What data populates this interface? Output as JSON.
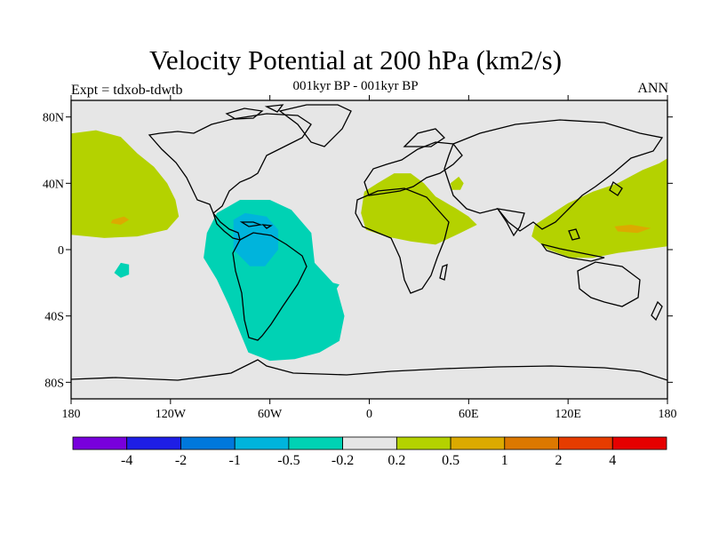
{
  "title": "Velocity Potential at 200 hPa (km2/s)",
  "subtitle": "001kyr BP - 001kyr BP",
  "left_string": "Expt = tdxob-tdwtb",
  "right_string": "ANN",
  "map": {
    "projection": "cylindrical-equidistant",
    "lon_range": [
      -180,
      180
    ],
    "lat_range": [
      -90,
      90
    ],
    "background_color": "#e6e6e6",
    "coastline_color": "#000000",
    "lat_ticks": [
      {
        "value": 80,
        "label": "80N"
      },
      {
        "value": 40,
        "label": "40N"
      },
      {
        "value": 0,
        "label": "0"
      },
      {
        "value": -40,
        "label": "40S"
      },
      {
        "value": -80,
        "label": "80S"
      }
    ],
    "lon_ticks": [
      {
        "value": -180,
        "label": "180"
      },
      {
        "value": -120,
        "label": "120W"
      },
      {
        "value": -60,
        "label": "60W"
      },
      {
        "value": 0,
        "label": "0"
      },
      {
        "value": 60,
        "label": "60E"
      },
      {
        "value": 120,
        "label": "120E"
      },
      {
        "value": 180,
        "label": "180"
      }
    ],
    "regions": [
      {
        "name": "North Pacific positive",
        "color": "#b4d200",
        "lonlat": [
          [
            -180,
            70
          ],
          [
            -165,
            72
          ],
          [
            -150,
            68
          ],
          [
            -140,
            58
          ],
          [
            -130,
            50
          ],
          [
            -122,
            40
          ],
          [
            -117,
            30
          ],
          [
            -115,
            20
          ],
          [
            -122,
            12
          ],
          [
            -140,
            8
          ],
          [
            -160,
            7
          ],
          [
            -180,
            9
          ]
        ]
      },
      {
        "name": "North Pacific max",
        "color": "#dcaa00",
        "lonlat": [
          [
            -155,
            18
          ],
          [
            -148,
            20
          ],
          [
            -145,
            18
          ],
          [
            -150,
            15
          ],
          [
            -156,
            16
          ]
        ]
      },
      {
        "name": "South America negative",
        "color": "#00d2b4",
        "lonlat": [
          [
            -100,
            -5
          ],
          [
            -92,
            -18
          ],
          [
            -85,
            -33
          ],
          [
            -78,
            -50
          ],
          [
            -73,
            -62
          ],
          [
            -60,
            -67
          ],
          [
            -45,
            -66
          ],
          [
            -30,
            -62
          ],
          [
            -18,
            -55
          ],
          [
            -15,
            -40
          ],
          [
            -20,
            -22
          ],
          [
            -33,
            -8
          ],
          [
            -35,
            10
          ],
          [
            -47,
            24
          ],
          [
            -60,
            30
          ],
          [
            -78,
            30
          ],
          [
            -92,
            22
          ],
          [
            -98,
            10
          ]
        ]
      },
      {
        "name": "Caribbean negative core",
        "color": "#00b4dc",
        "lonlat": [
          [
            -82,
            18
          ],
          [
            -75,
            22
          ],
          [
            -62,
            20
          ],
          [
            -55,
            12
          ],
          [
            -55,
            0
          ],
          [
            -63,
            -10
          ],
          [
            -72,
            -10
          ],
          [
            -82,
            0
          ]
        ]
      },
      {
        "name": "South Pacific negative",
        "color": "#00d2b4",
        "lonlat": [
          [
            -150,
            -8
          ],
          [
            -145,
            -9
          ],
          [
            -145,
            -15
          ],
          [
            -150,
            -17
          ],
          [
            -154,
            -14
          ]
        ]
      },
      {
        "name": "South Atlantic negative",
        "color": "#00d2b4",
        "lonlat": [
          [
            -22,
            -20
          ],
          [
            -18,
            -21
          ],
          [
            -20,
            -24
          ],
          [
            -24,
            -22
          ]
        ]
      },
      {
        "name": "Africa positive",
        "color": "#b4d200",
        "lonlat": [
          [
            -3,
            35
          ],
          [
            5,
            40
          ],
          [
            15,
            46
          ],
          [
            25,
            46
          ],
          [
            33,
            40
          ],
          [
            40,
            32
          ],
          [
            52,
            25
          ],
          [
            60,
            20
          ],
          [
            65,
            15
          ],
          [
            55,
            10
          ],
          [
            40,
            3
          ],
          [
            25,
            5
          ],
          [
            10,
            8
          ],
          [
            -2,
            12
          ],
          [
            -5,
            22
          ]
        ]
      },
      {
        "name": "Caspian positive",
        "color": "#b4d200",
        "lonlat": [
          [
            49,
            40
          ],
          [
            54,
            44
          ],
          [
            57,
            40
          ],
          [
            55,
            36
          ],
          [
            50,
            36
          ]
        ]
      },
      {
        "name": "West Pacific positive",
        "color": "#b4d200",
        "lonlat": [
          [
            100,
            15
          ],
          [
            120,
            28
          ],
          [
            135,
            35
          ],
          [
            150,
            40
          ],
          [
            165,
            48
          ],
          [
            175,
            52
          ],
          [
            180,
            55
          ],
          [
            180,
            2
          ],
          [
            165,
            0
          ],
          [
            150,
            -2
          ],
          [
            135,
            -5
          ],
          [
            122,
            -5
          ],
          [
            108,
            0
          ],
          [
            98,
            8
          ]
        ]
      },
      {
        "name": "West Pacific max",
        "color": "#dcaa00",
        "lonlat": [
          [
            148,
            14
          ],
          [
            158,
            15
          ],
          [
            170,
            13
          ],
          [
            162,
            10
          ],
          [
            150,
            11
          ]
        ]
      }
    ]
  },
  "colorbar": {
    "colors": [
      "#7800dc",
      "#1e1ee6",
      "#0078dc",
      "#00b4dc",
      "#00d2b4",
      "#e6e6e6",
      "#b4d200",
      "#dcaa00",
      "#dc7800",
      "#e63c00",
      "#e60000"
    ],
    "labels": [
      "-4",
      "-2",
      "-1",
      "-0.5",
      "-0.2",
      "0.2",
      "0.5",
      "1",
      "2",
      "4"
    ]
  }
}
